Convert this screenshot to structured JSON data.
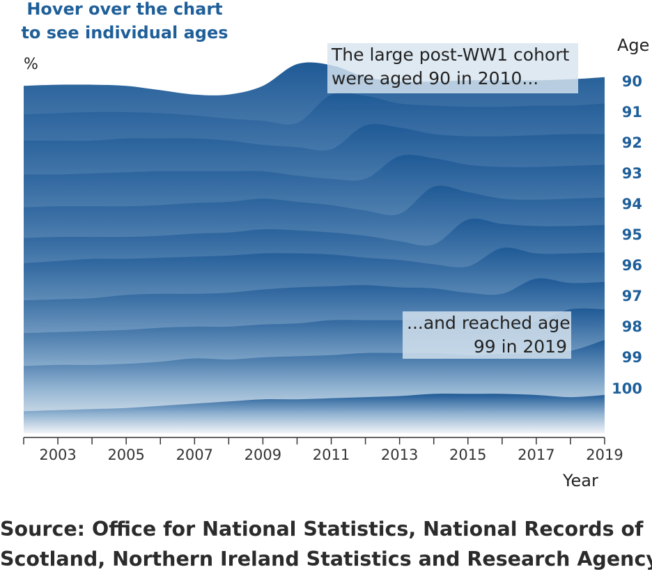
{
  "header": {
    "hover_line1": "Hover over the chart",
    "hover_line2": "to see individual ages"
  },
  "axis": {
    "ylabel": "%",
    "xlabel": "Year",
    "age_title": "Age"
  },
  "annotations": {
    "first_line1": "The large post-WW1 cohort",
    "first_line2": "were aged 90 in 2010...",
    "second_line1": "...and reached age",
    "second_line2": "99 in 2019"
  },
  "source": {
    "line1": "Source: Office for National Statistics, National Records of",
    "line2": "Scotland, Northern Ireland Statistics and Research Agency"
  },
  "colors": {
    "dark_blue": "#1f5a96",
    "light_fill": "#f2f4f7",
    "label_blue": "#1f5f99"
  },
  "chart_data": {
    "type": "area",
    "x": [
      2002,
      2003,
      2004,
      2005,
      2006,
      2007,
      2008,
      2009,
      2010,
      2011,
      2012,
      2013,
      2014,
      2015,
      2016,
      2017,
      2018,
      2019
    ],
    "x_tick_labels": [
      "2003",
      "2005",
      "2007",
      "2009",
      "2011",
      "2013",
      "2015",
      "2017",
      "2019"
    ],
    "xlim": [
      2002,
      2019
    ],
    "series": [
      {
        "name": "90",
        "values": [
          0.6,
          0.62,
          0.62,
          0.6,
          0.52,
          0.44,
          0.44,
          0.6,
          1.0,
          0.98,
          0.76,
          0.68,
          0.68,
          0.7,
          0.7,
          0.7,
          0.72,
          0.76
        ]
      },
      {
        "name": "91",
        "values": [
          0.64,
          0.66,
          0.68,
          0.68,
          0.66,
          0.62,
          0.56,
          0.52,
          0.48,
          1.0,
          0.98,
          0.84,
          0.8,
          0.78,
          0.78,
          0.8,
          0.8,
          0.84
        ]
      },
      {
        "name": "92",
        "values": [
          0.72,
          0.72,
          0.72,
          0.76,
          0.76,
          0.76,
          0.72,
          0.64,
          0.6,
          0.56,
          1.0,
          0.96,
          0.84,
          0.8,
          0.8,
          0.82,
          0.84,
          0.84
        ]
      },
      {
        "name": "93",
        "values": [
          0.66,
          0.66,
          0.68,
          0.7,
          0.72,
          0.72,
          0.72,
          0.72,
          0.64,
          0.58,
          0.58,
          1.0,
          0.96,
          0.84,
          0.8,
          0.8,
          0.82,
          0.84
        ]
      },
      {
        "name": "94",
        "values": [
          0.62,
          0.64,
          0.64,
          0.64,
          0.66,
          0.7,
          0.72,
          0.78,
          0.72,
          0.66,
          0.56,
          0.5,
          1.0,
          0.9,
          0.78,
          0.76,
          0.78,
          0.8
        ]
      },
      {
        "name": "95",
        "values": [
          0.62,
          0.64,
          0.64,
          0.64,
          0.66,
          0.7,
          0.72,
          0.78,
          0.76,
          0.72,
          0.66,
          0.56,
          0.5,
          0.96,
          0.88,
          0.84,
          0.84,
          0.86
        ]
      },
      {
        "name": "96",
        "values": [
          0.72,
          0.76,
          0.8,
          0.8,
          0.82,
          0.84,
          0.86,
          0.9,
          0.9,
          0.88,
          0.82,
          0.78,
          0.7,
          0.66,
          1.0,
          0.9,
          0.9,
          0.92
        ]
      },
      {
        "name": "97",
        "values": [
          0.6,
          0.62,
          0.64,
          0.7,
          0.72,
          0.72,
          0.74,
          0.8,
          0.84,
          0.86,
          0.88,
          0.84,
          0.82,
          0.74,
          0.72,
          1.0,
          0.92,
          0.94
        ]
      },
      {
        "name": "98",
        "values": [
          0.56,
          0.58,
          0.6,
          0.62,
          0.66,
          0.68,
          0.68,
          0.72,
          0.74,
          0.8,
          0.8,
          0.8,
          0.8,
          0.8,
          0.8,
          0.78,
          1.0,
          1.0
        ]
      },
      {
        "name": "99",
        "values": [
          0.52,
          0.54,
          0.54,
          0.56,
          0.6,
          0.66,
          0.64,
          0.68,
          0.7,
          0.72,
          0.76,
          0.76,
          0.76,
          0.72,
          0.74,
          0.76,
          0.8,
          1.0
        ]
      },
      {
        "name": "100",
        "values": [
          0.38,
          0.4,
          0.42,
          0.44,
          0.48,
          0.52,
          0.56,
          0.6,
          0.6,
          0.62,
          0.64,
          0.66,
          0.7,
          0.7,
          0.7,
          0.68,
          0.64,
          0.68
        ]
      }
    ],
    "title": "",
    "xlabel": "Year",
    "ylabel": "%",
    "legend": "right (age labels)",
    "grid": false
  }
}
